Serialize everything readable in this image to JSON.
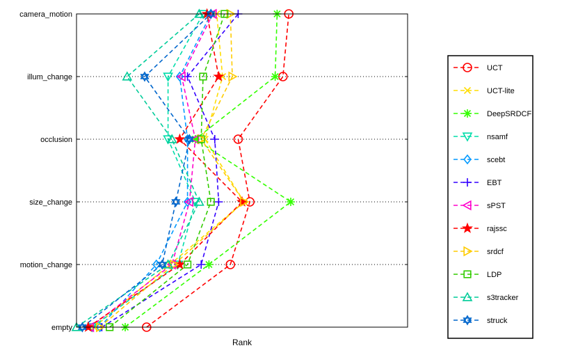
{
  "chart_data": {
    "type": "line",
    "title": "",
    "xlabel": "Rank",
    "ylabel": "",
    "xlim": [
      0,
      17
    ],
    "x_ticks_shown": false,
    "grid": "horizontal-dotted",
    "legend_position": "right-outside",
    "categories": [
      "empty",
      "motion_change",
      "size_change",
      "occlusion",
      "illum_change",
      "camera_motion"
    ],
    "series": [
      {
        "name": "UCT",
        "color": "#ff0000",
        "marker": "circle",
        "values": [
          3.6,
          7.9,
          8.9,
          8.3,
          10.6,
          10.9
        ]
      },
      {
        "name": "UCT-lite",
        "color": "#ffdd00",
        "marker": "x",
        "values": [
          0.9,
          4.8,
          8.6,
          6.6,
          7.5,
          7.2
        ]
      },
      {
        "name": "DeepSRDCF",
        "color": "#33ff00",
        "marker": "asterisk",
        "values": [
          2.5,
          6.8,
          11.0,
          6.1,
          10.2,
          10.3
        ]
      },
      {
        "name": "nsamf",
        "color": "#00ddaa",
        "marker": "triangle-down",
        "values": [
          0.8,
          5.2,
          6.1,
          4.7,
          4.7,
          6.5
        ]
      },
      {
        "name": "scebt",
        "color": "#0099ff",
        "marker": "diamond",
        "values": [
          1.2,
          4.1,
          5.7,
          5.7,
          5.3,
          6.9
        ]
      },
      {
        "name": "EBT",
        "color": "#3300ff",
        "marker": "plus",
        "values": [
          1.3,
          6.4,
          7.3,
          7.1,
          5.7,
          8.3
        ]
      },
      {
        "name": "sPST",
        "color": "#ff00cc",
        "marker": "triangle-left",
        "values": [
          0.7,
          4.9,
          5.8,
          6.1,
          5.4,
          7.0
        ]
      },
      {
        "name": "rajssc",
        "color": "#ff0000",
        "marker": "star",
        "values": [
          0.6,
          5.3,
          8.5,
          5.3,
          7.3,
          6.7
        ]
      },
      {
        "name": "srdcf",
        "color": "#ffcc00",
        "marker": "triangle-right",
        "values": [
          1.2,
          5.0,
          8.6,
          6.4,
          8.0,
          7.9
        ]
      },
      {
        "name": "LDP",
        "color": "#33cc00",
        "marker": "square",
        "values": [
          1.7,
          5.7,
          6.9,
          6.4,
          6.5,
          7.6
        ]
      },
      {
        "name": "s3tracker",
        "color": "#00cc99",
        "marker": "triangle-up",
        "values": [
          0.0,
          4.7,
          6.3,
          4.9,
          2.6,
          6.3
        ]
      },
      {
        "name": "struck",
        "color": "#0066cc",
        "marker": "hexagram",
        "values": [
          0.3,
          4.4,
          5.1,
          5.8,
          3.5,
          6.9
        ]
      }
    ]
  }
}
